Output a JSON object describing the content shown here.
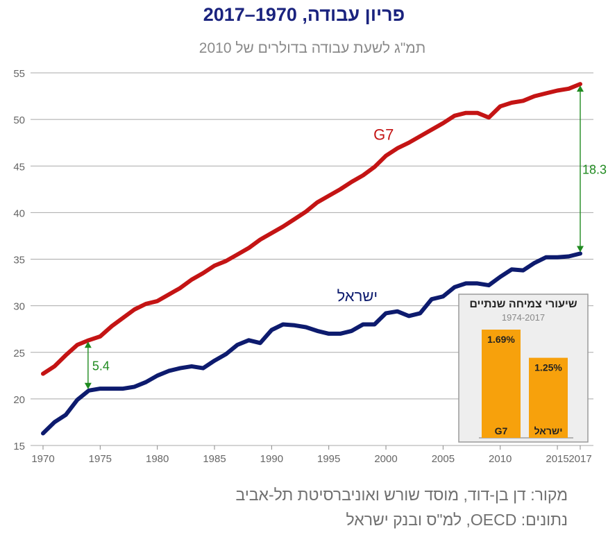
{
  "title": "פריון עבודה, 1970–2017",
  "subtitle": "תמ\"ג לשעת עבודה בדולרים של  2010",
  "footer": {
    "source": "מקור: דן בן-דוד, מוסד שורש ואוניברסיטת תל-אביב",
    "data_source": "נתונים: OECD, למ\"ס ובנק ישראל"
  },
  "colors": {
    "g7": "#c41414",
    "israel": "#0d1b6e",
    "gap": "#1f8a1f",
    "inset_bar": "#f7a10c",
    "grid": "#a8a8a8"
  },
  "chart_data": [
    {
      "type": "line",
      "title": "פריון עבודה, 1970–2017",
      "subtitle": "תמ\"ג לשעת עבודה בדולרים של  2010",
      "x": [
        1970,
        1971,
        1972,
        1973,
        1974,
        1975,
        1976,
        1977,
        1978,
        1979,
        1980,
        1981,
        1982,
        1983,
        1984,
        1985,
        1986,
        1987,
        1988,
        1989,
        1990,
        1991,
        1992,
        1993,
        1994,
        1995,
        1996,
        1997,
        1998,
        1999,
        2000,
        2001,
        2002,
        2003,
        2004,
        2005,
        2006,
        2007,
        2008,
        2009,
        2010,
        2011,
        2012,
        2013,
        2014,
        2015,
        2016,
        2017
      ],
      "series": [
        {
          "name": "G7",
          "values": [
            22.7,
            23.5,
            24.7,
            25.8,
            26.3,
            26.7,
            27.8,
            28.7,
            29.6,
            30.2,
            30.5,
            31.2,
            31.9,
            32.8,
            33.5,
            34.3,
            34.8,
            35.5,
            36.2,
            37.1,
            37.8,
            38.5,
            39.3,
            40.1,
            41.1,
            41.8,
            42.5,
            43.3,
            44.0,
            44.9,
            46.1,
            46.9,
            47.5,
            48.2,
            48.9,
            49.6,
            50.4,
            50.7,
            50.7,
            50.2,
            51.4,
            51.8,
            52.0,
            52.5,
            52.8,
            53.1,
            53.3,
            53.8
          ]
        },
        {
          "name": "ישראל",
          "values": [
            16.3,
            17.5,
            18.3,
            19.9,
            20.9,
            21.1,
            21.1,
            21.1,
            21.3,
            21.8,
            22.5,
            23.0,
            23.3,
            23.5,
            23.3,
            24.1,
            24.8,
            25.8,
            26.3,
            26.0,
            27.4,
            28.0,
            27.9,
            27.7,
            27.3,
            27.0,
            27.0,
            27.3,
            28.0,
            28.0,
            29.2,
            29.4,
            28.9,
            29.2,
            30.7,
            31.0,
            32.0,
            32.4,
            32.4,
            32.2,
            33.1,
            33.9,
            33.8,
            34.6,
            35.2,
            35.2,
            35.3,
            35.6
          ]
        }
      ],
      "ylim": [
        15,
        55
      ],
      "xlim": [
        1970,
        2017
      ],
      "yticks": [
        15,
        20,
        25,
        30,
        35,
        40,
        45,
        50,
        55
      ],
      "xticks": [
        1970,
        1975,
        1980,
        1985,
        1990,
        1995,
        2000,
        2005,
        2010,
        2015,
        2017
      ],
      "grid": "horizontal",
      "series_labels": [
        {
          "text": "G7",
          "series": "G7"
        },
        {
          "text": "ישראל",
          "series": "ישראל"
        }
      ],
      "annotations": [
        {
          "text": "5.4",
          "x": 1974,
          "y_from": 20.9,
          "y_to": 26.3
        },
        {
          "text": "18.3",
          "x": 2017,
          "y_from": 35.6,
          "y_to": 53.8
        }
      ]
    },
    {
      "type": "bar",
      "title": "שיעורי צמיחה שנתיים",
      "subtitle": "1974-2017",
      "categories": [
        "G7",
        "ישראל"
      ],
      "values": [
        1.69,
        1.25
      ],
      "value_labels": [
        "1.69%",
        "1.25%"
      ]
    }
  ]
}
